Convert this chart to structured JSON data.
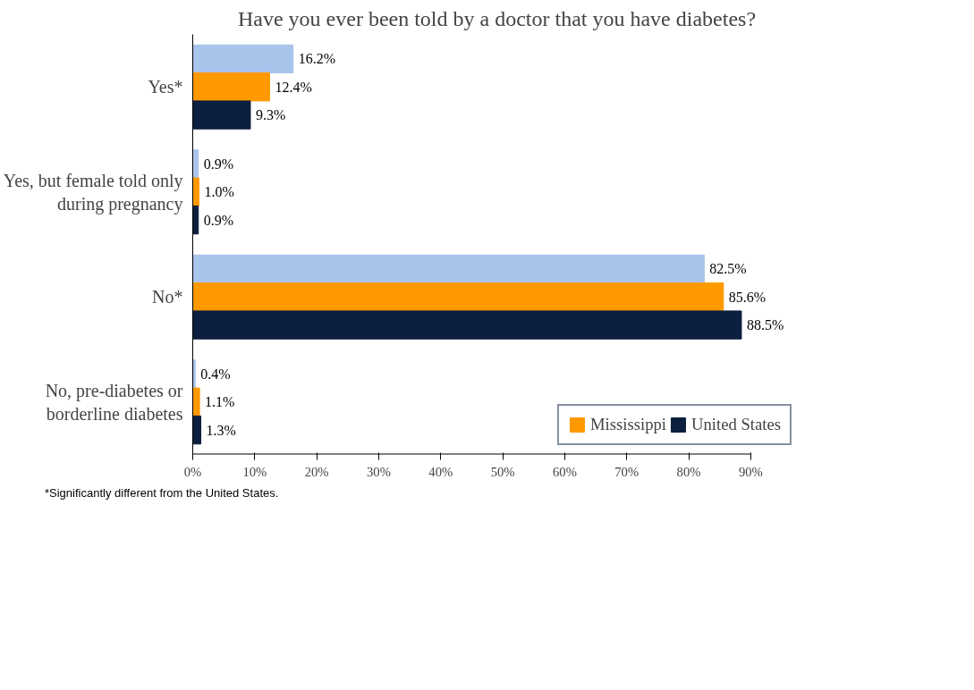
{
  "chart_data": {
    "type": "bar",
    "orientation": "horizontal",
    "title": "Have you ever been told by a doctor that you have diabetes?",
    "categories": [
      "Yes*",
      "Yes, but female told only during pregnancy",
      "No*",
      "No, pre-diabetes or borderline diabetes"
    ],
    "series": [
      {
        "color": "#a9c4eb",
        "values": [
          16.2,
          0.9,
          82.5,
          0.4
        ],
        "value_labels": [
          "16.2%",
          "0.9%",
          "82.5%",
          "0.4%"
        ]
      },
      {
        "name": "Mississippi",
        "color": "#ff9900",
        "values": [
          12.4,
          1.0,
          85.6,
          1.1
        ],
        "value_labels": [
          "12.4%",
          "1.0%",
          "85.6%",
          "1.1%"
        ]
      },
      {
        "name": "United States",
        "color": "#0c1f3f",
        "values": [
          9.3,
          0.9,
          88.5,
          1.3
        ],
        "value_labels": [
          "9.3%",
          "0.9%",
          "88.5%",
          "1.3%"
        ]
      }
    ],
    "xlim": [
      0,
      90
    ],
    "xticks": [
      {
        "value": 0,
        "label": "0%"
      },
      {
        "value": 10,
        "label": "10%"
      },
      {
        "value": 20,
        "label": "20%"
      },
      {
        "value": 30,
        "label": "30%"
      },
      {
        "value": 40,
        "label": "40%"
      },
      {
        "value": 50,
        "label": "50%"
      },
      {
        "value": 60,
        "label": "60%"
      },
      {
        "value": 70,
        "label": "70%"
      },
      {
        "value": 80,
        "label": "80%"
      },
      {
        "value": 90,
        "label": "90%"
      }
    ],
    "grid": false,
    "legend": "bottom right",
    "annotations": [
      "*Significantly different from the United States."
    ]
  }
}
